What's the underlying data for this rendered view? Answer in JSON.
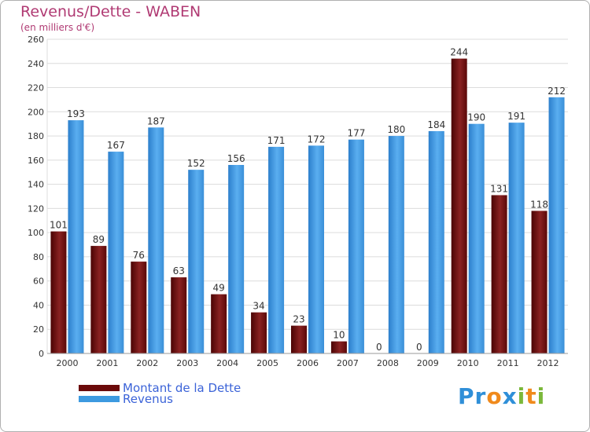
{
  "header": {
    "title": "Revenus/Dette - WABEN",
    "subtitle": "(en milliers d'€)"
  },
  "legend": {
    "items": [
      {
        "label": "Montant de la Dette",
        "color": "#6b0a0a"
      },
      {
        "label": "Revenus",
        "color": "#3d9ae0"
      }
    ]
  },
  "logo": {
    "letters": [
      {
        "char": "P",
        "color": "#2f8fd8"
      },
      {
        "char": "r",
        "color": "#2f8fd8"
      },
      {
        "char": "o",
        "color": "#f08a1c"
      },
      {
        "char": "x",
        "color": "#2f8fd8"
      },
      {
        "char": "i",
        "color": "#7bb83a"
      },
      {
        "char": "t",
        "color": "#f08a1c"
      },
      {
        "char": "i",
        "color": "#7bb83a"
      }
    ]
  },
  "chart_data": {
    "type": "bar",
    "title": "Revenus/Dette - WABEN",
    "subtitle": "(en milliers d'€)",
    "categories": [
      "2000",
      "2001",
      "2002",
      "2003",
      "2004",
      "2005",
      "2006",
      "2007",
      "2008",
      "2009",
      "2010",
      "2011",
      "2012"
    ],
    "series": [
      {
        "name": "Montant de la Dette",
        "color": "#7a1010",
        "values": [
          101,
          89,
          76,
          63,
          49,
          34,
          23,
          10,
          0,
          0,
          244,
          131,
          118
        ]
      },
      {
        "name": "Revenus",
        "color": "#3d9ae0",
        "values": [
          193,
          167,
          187,
          152,
          156,
          171,
          172,
          177,
          180,
          184,
          190,
          191,
          212
        ]
      }
    ],
    "ylim": [
      0,
      260
    ],
    "yticks": [
      0,
      20,
      40,
      60,
      80,
      100,
      120,
      140,
      160,
      180,
      200,
      220,
      240,
      260
    ],
    "grid": true,
    "legend_position": "bottom-left",
    "xlabel": "",
    "ylabel": ""
  }
}
